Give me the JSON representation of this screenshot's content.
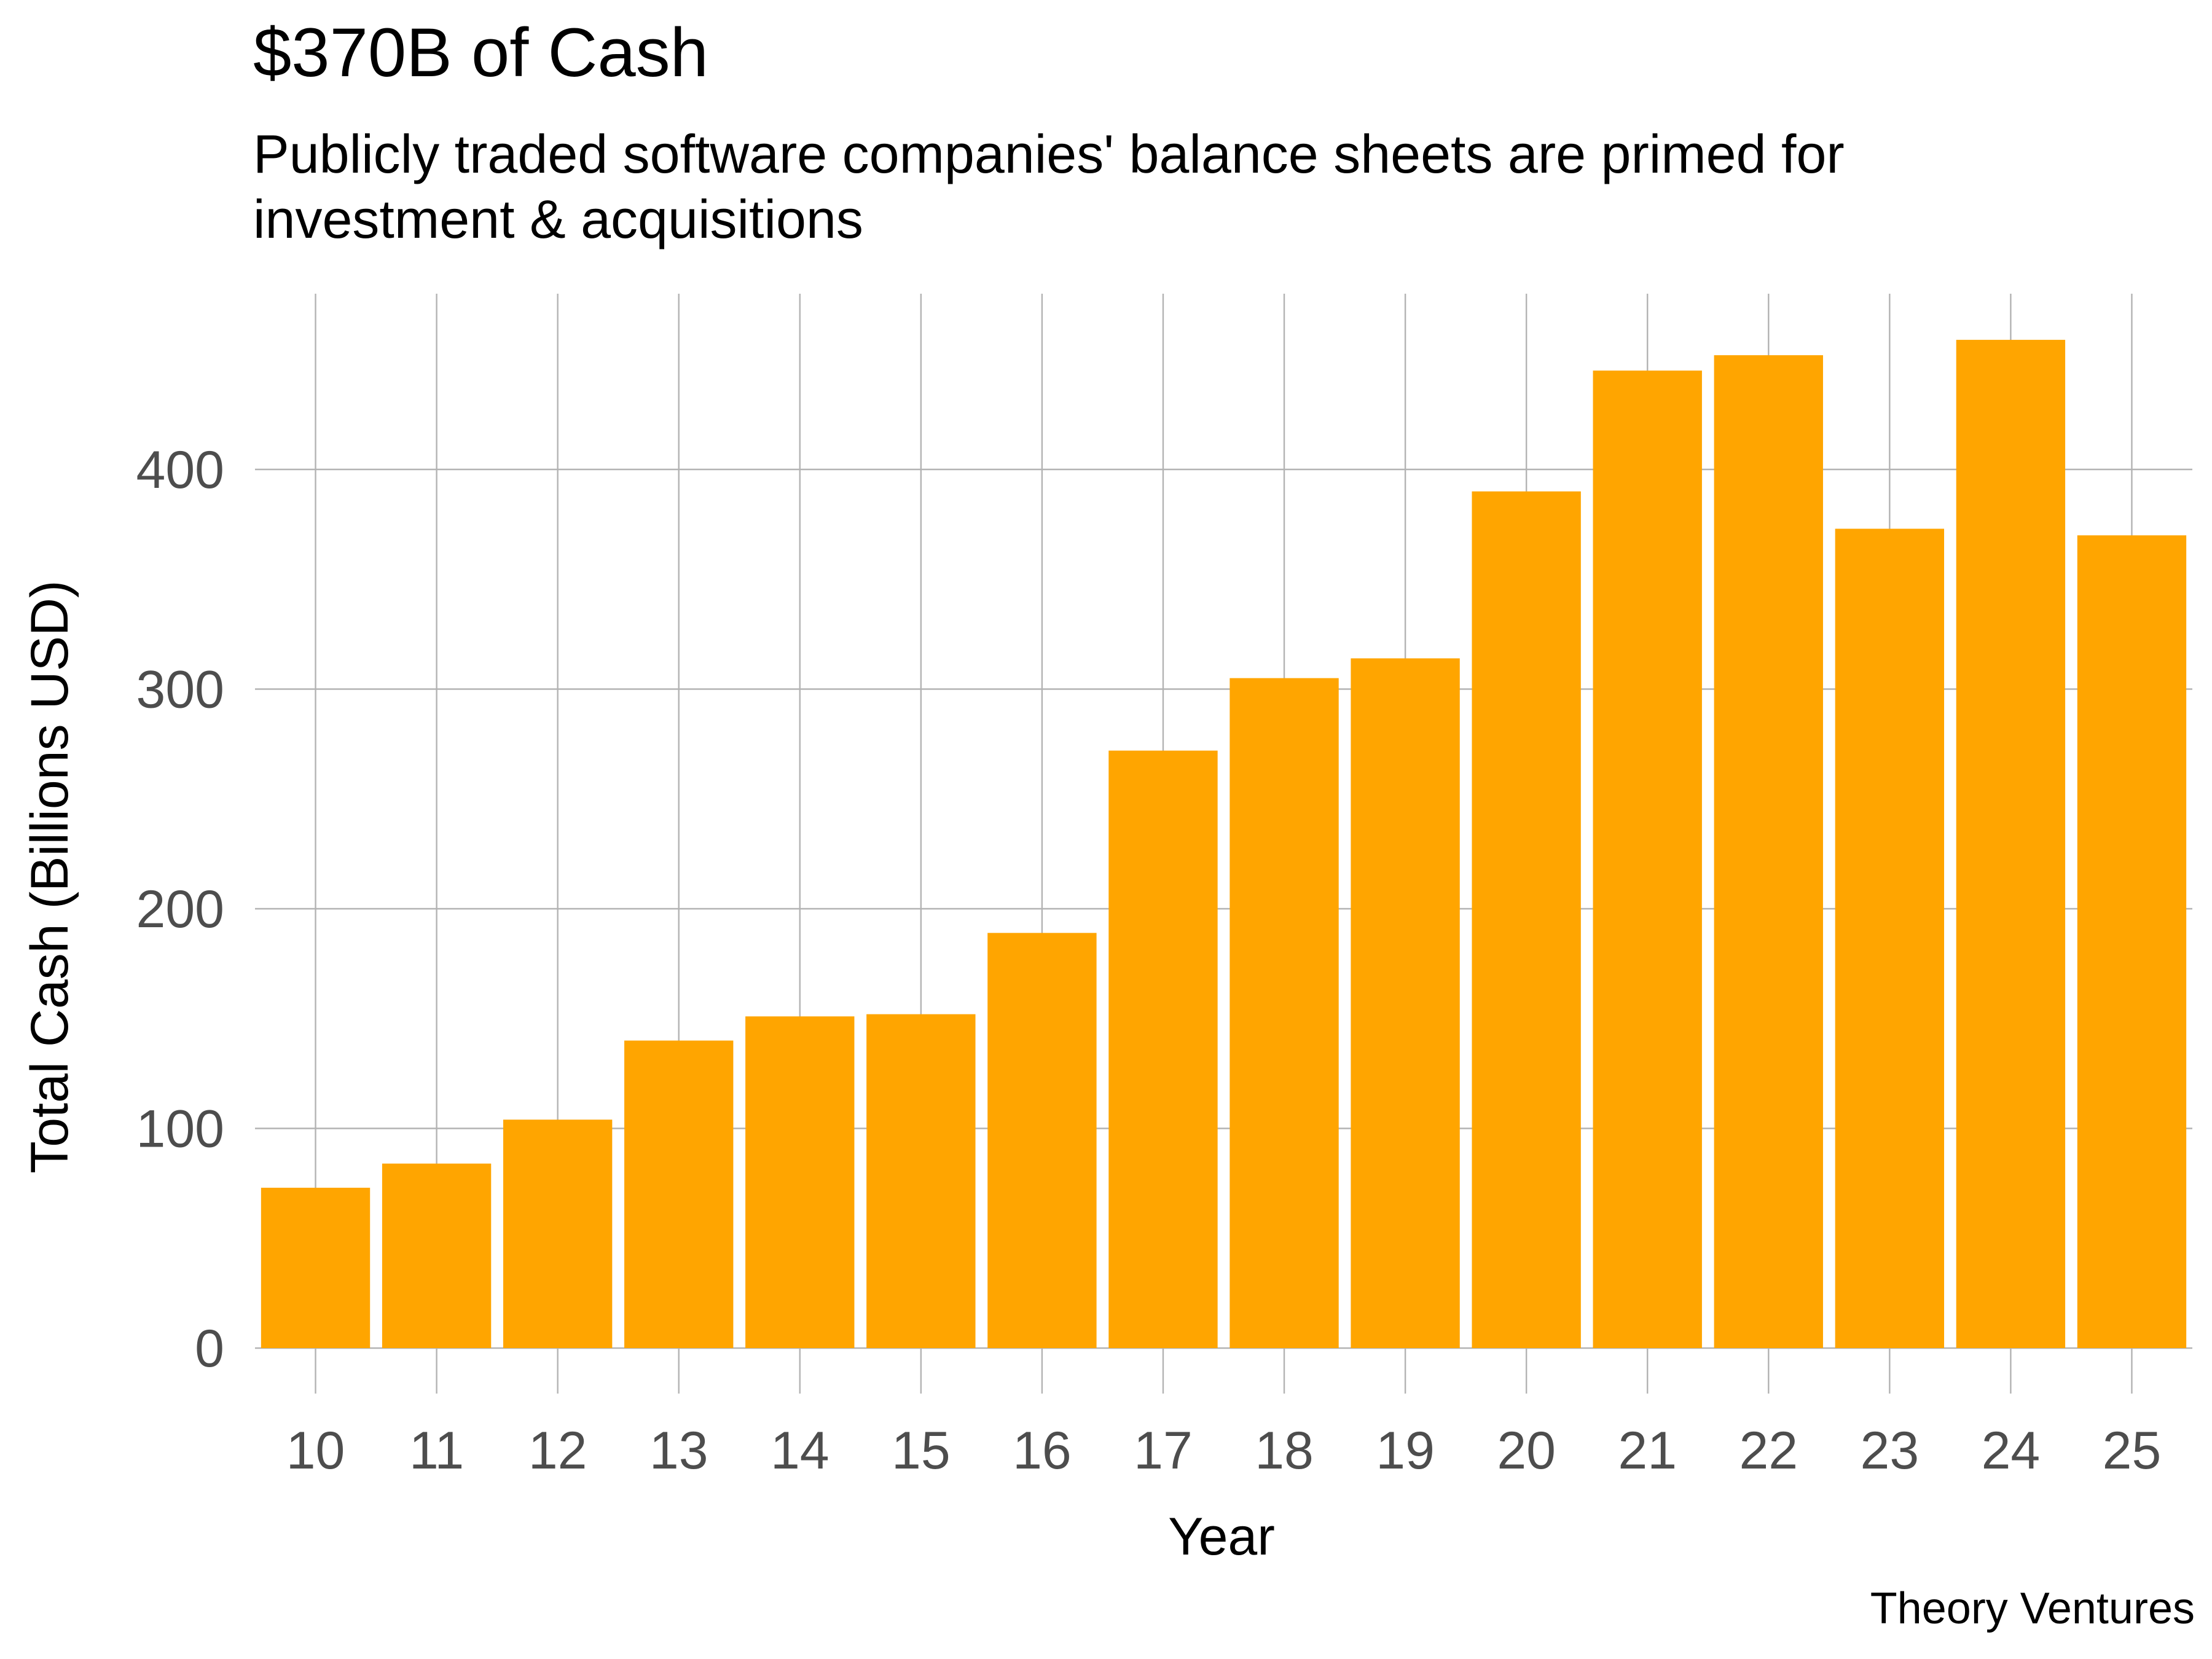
{
  "chart_data": {
    "type": "bar",
    "title": "$370B of Cash",
    "subtitle": "Publicly traded software companies' balance sheets are primed for investment & acquisitions",
    "xlabel": "Year",
    "ylabel": "Total Cash (Billions USD)",
    "caption": "Theory Ventures",
    "categories": [
      "10",
      "11",
      "12",
      "13",
      "14",
      "15",
      "16",
      "17",
      "18",
      "19",
      "20",
      "21",
      "22",
      "23",
      "24",
      "25"
    ],
    "values": [
      73,
      84,
      104,
      140,
      151,
      152,
      189,
      272,
      305,
      314,
      390,
      445,
      452,
      373,
      459,
      370
    ],
    "ylim": [
      0,
      480
    ],
    "yticks": [
      0,
      100,
      200,
      300,
      400
    ],
    "grid": true,
    "legend": "none",
    "bar_color": "#FFA500",
    "grid_color": "#b3b3b3",
    "tick_label_color": "#4d4d4d"
  }
}
